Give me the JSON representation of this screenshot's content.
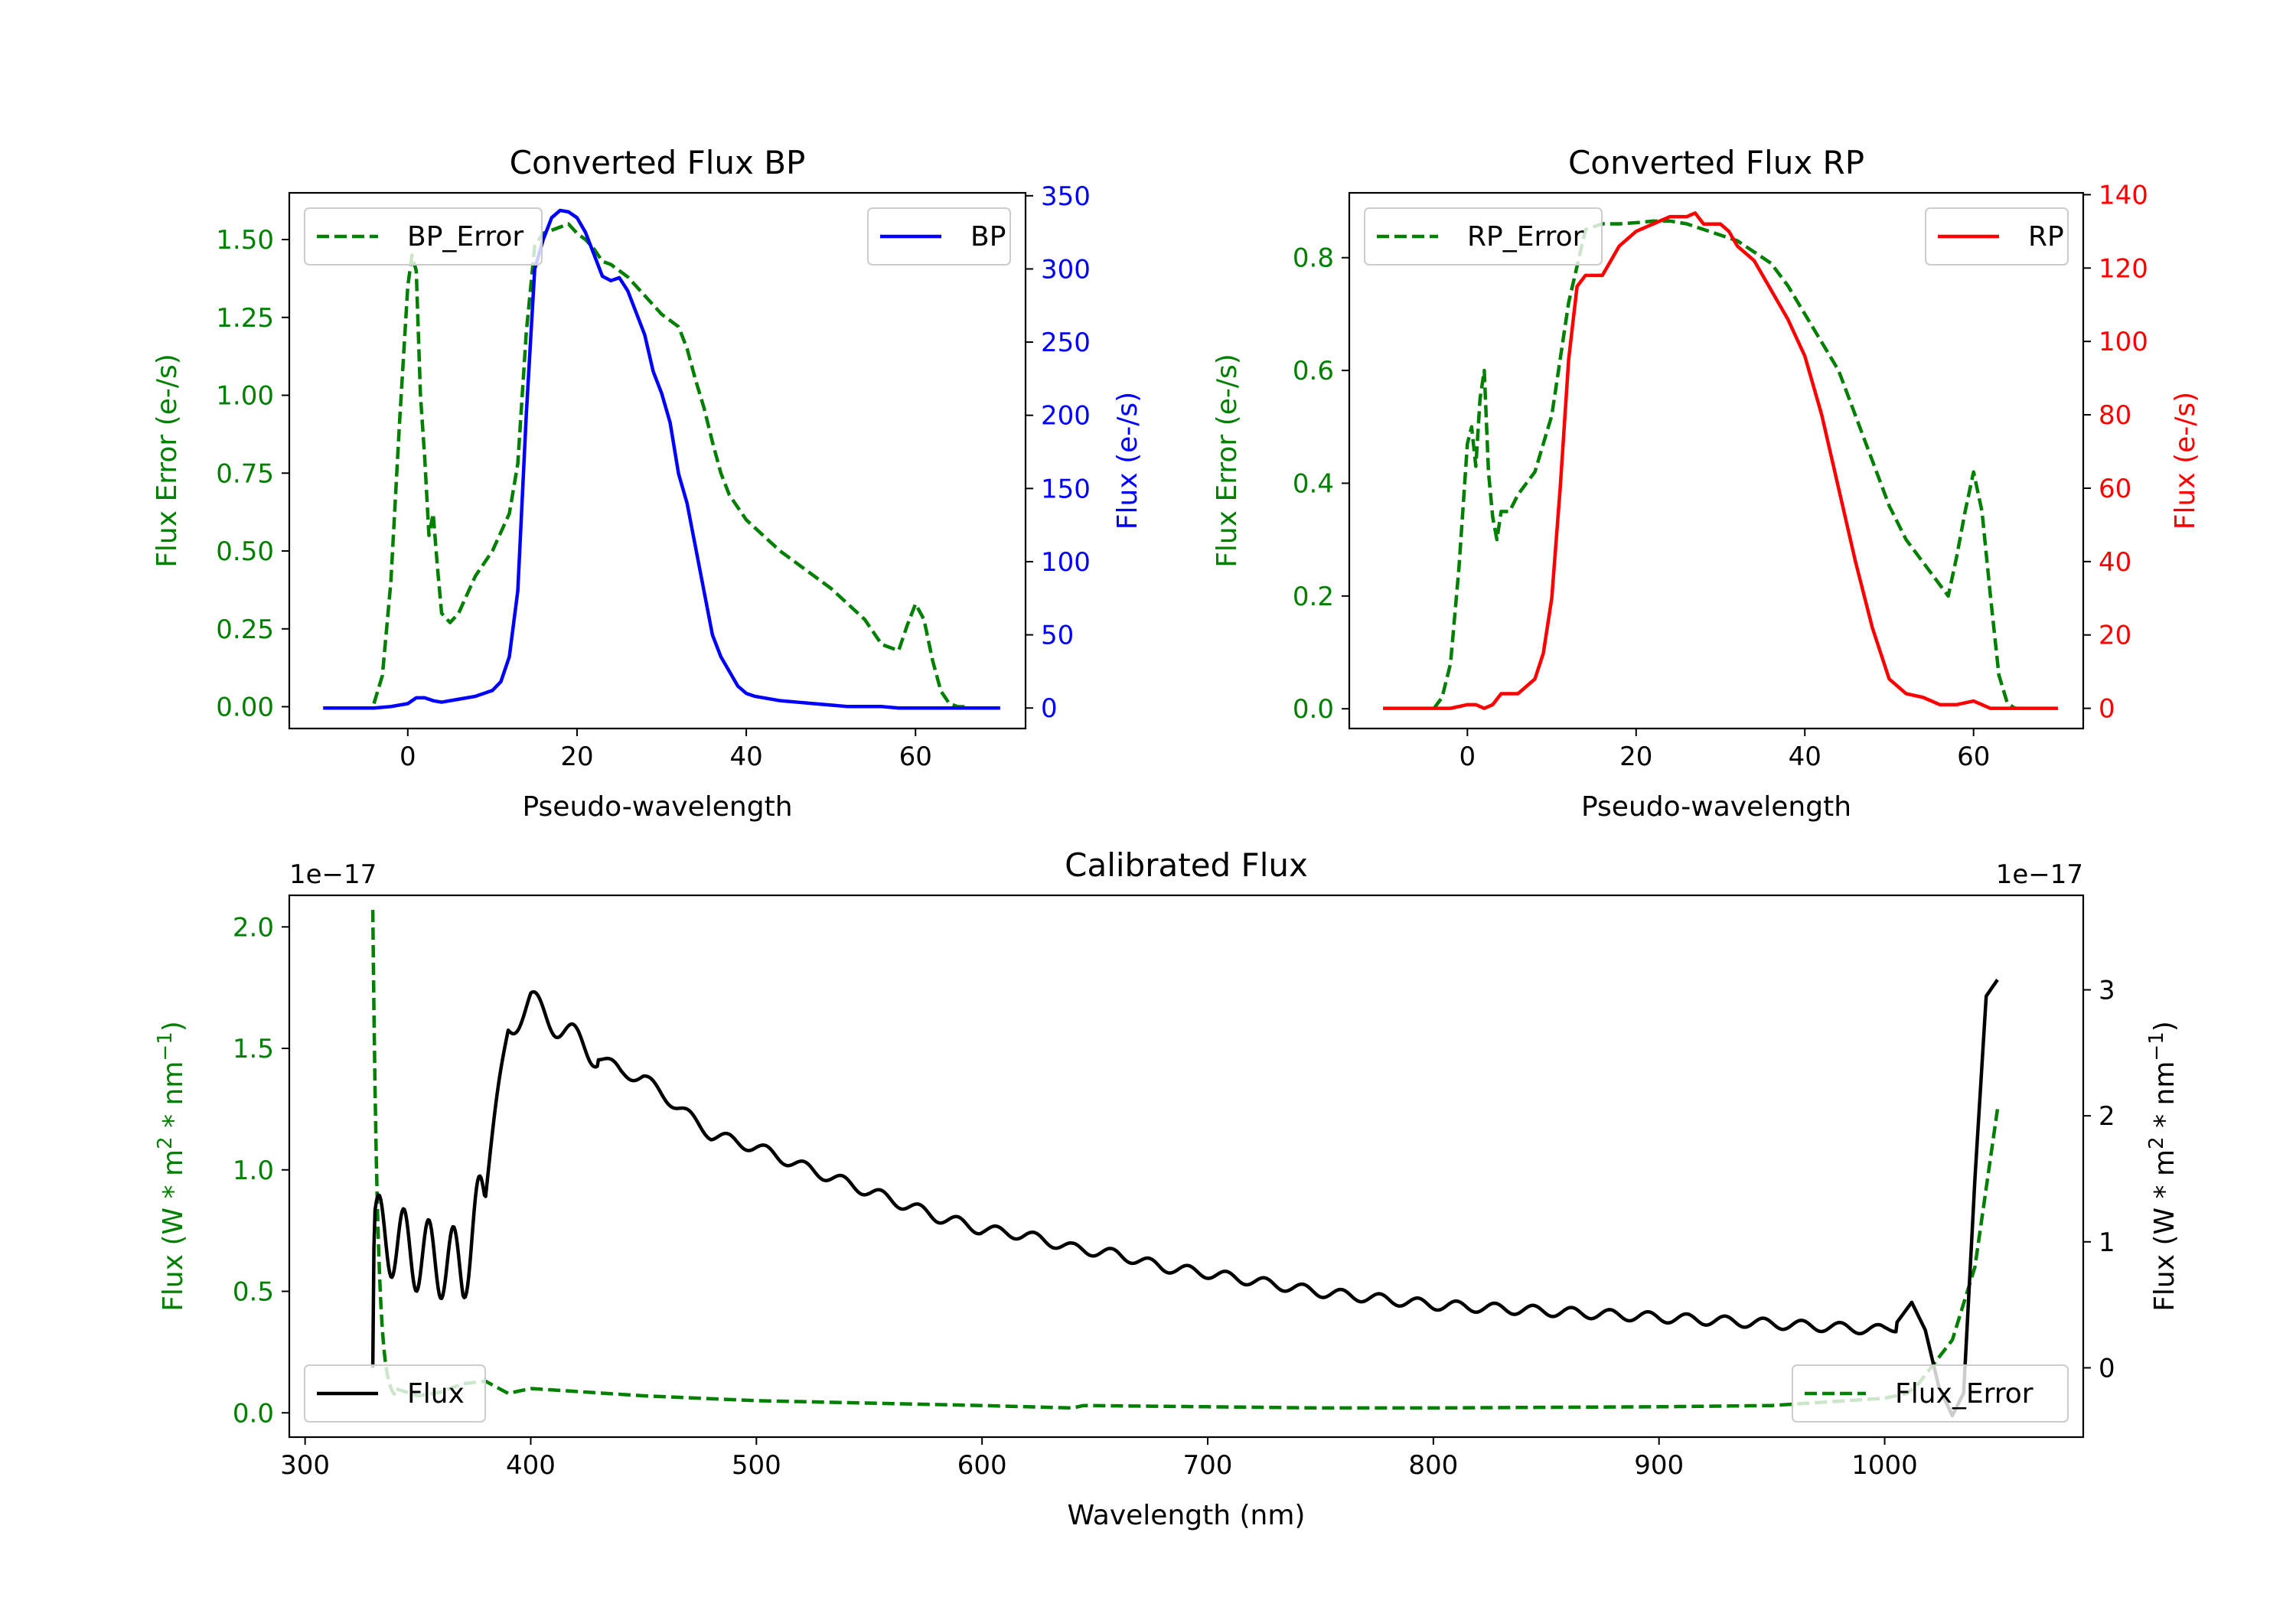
{
  "chart_data": [
    {
      "id": "bp",
      "type": "line",
      "title": "Converted Flux BP",
      "xlabel": "Pseudo-wavelength",
      "ylabel_left": "Flux Error (e-/s)",
      "ylabel_right": "Flux (e-/s)",
      "xlim": [
        -14,
        73
      ],
      "ylim_left": [
        -0.07,
        1.65
      ],
      "ylim_right": [
        -14,
        352
      ],
      "xticks": [
        0,
        20,
        40,
        60
      ],
      "yticks_left": [
        0.0,
        0.25,
        0.5,
        0.75,
        1.0,
        1.25,
        1.5
      ],
      "yticks_left_labels": [
        "0.00",
        "0.25",
        "0.50",
        "0.75",
        "1.00",
        "1.25",
        "1.50"
      ],
      "yticks_right": [
        0,
        50,
        100,
        150,
        200,
        250,
        300,
        350
      ],
      "legend_left": "BP_Error",
      "legend_right": "BP",
      "series_error": {
        "name": "BP_Error",
        "axis": "left",
        "color": "#008000",
        "dash": true,
        "x": [
          -4,
          -3,
          -2,
          -1,
          0,
          0.5,
          1,
          1.5,
          2,
          2.5,
          3,
          3.5,
          4,
          5,
          6,
          7,
          8,
          10,
          12,
          13,
          14,
          15,
          16,
          17,
          18,
          19,
          20,
          21,
          22,
          23,
          24,
          25,
          26,
          27,
          28,
          29,
          30,
          31,
          32,
          33,
          34,
          35,
          36,
          37,
          38,
          40,
          42,
          44,
          46,
          48,
          50,
          52,
          54,
          56,
          58,
          59,
          60,
          61,
          62,
          63,
          64,
          65,
          66
        ],
        "values": [
          0.01,
          0.1,
          0.4,
          0.9,
          1.35,
          1.45,
          1.4,
          1.0,
          0.8,
          0.55,
          0.62,
          0.45,
          0.3,
          0.27,
          0.3,
          0.36,
          0.42,
          0.5,
          0.62,
          0.78,
          1.2,
          1.48,
          1.52,
          1.53,
          1.54,
          1.55,
          1.52,
          1.5,
          1.47,
          1.43,
          1.42,
          1.4,
          1.38,
          1.35,
          1.32,
          1.29,
          1.26,
          1.24,
          1.22,
          1.15,
          1.05,
          0.96,
          0.85,
          0.75,
          0.68,
          0.6,
          0.55,
          0.5,
          0.46,
          0.42,
          0.38,
          0.33,
          0.28,
          0.2,
          0.18,
          0.26,
          0.33,
          0.28,
          0.15,
          0.05,
          0.01,
          0.0,
          0.0
        ]
      },
      "series_flux": {
        "name": "BP",
        "axis": "right",
        "color": "#0000ff",
        "dash": false,
        "x": [
          -10,
          -6,
          -4,
          -2,
          0,
          1,
          2,
          3,
          4,
          6,
          8,
          10,
          11,
          12,
          13,
          14,
          15,
          16,
          17,
          18,
          19,
          20,
          21,
          22,
          23,
          24,
          25,
          26,
          27,
          28,
          29,
          30,
          31,
          32,
          33,
          34,
          35,
          36,
          37,
          38,
          39,
          40,
          41,
          42,
          44,
          46,
          48,
          50,
          52,
          54,
          56,
          58,
          60,
          62,
          65,
          70
        ],
        "values": [
          0,
          0,
          0,
          1,
          3,
          7,
          7,
          5,
          4,
          6,
          8,
          12,
          18,
          35,
          80,
          200,
          300,
          320,
          335,
          340,
          339,
          335,
          325,
          310,
          295,
          292,
          294,
          285,
          270,
          255,
          230,
          215,
          195,
          160,
          140,
          110,
          80,
          50,
          35,
          25,
          15,
          10,
          8,
          7,
          5,
          4,
          3,
          2,
          1,
          1,
          1,
          0,
          0,
          0,
          0,
          0
        ]
      }
    },
    {
      "id": "rp",
      "type": "line",
      "title": "Converted Flux RP",
      "xlabel": "Pseudo-wavelength",
      "ylabel_left": "Flux Error (e-/s)",
      "ylabel_right": "Flux (e-/s)",
      "xlim": [
        -14,
        73
      ],
      "ylim_left": [
        -0.035,
        0.915
      ],
      "ylim_right": [
        -5.5,
        140.5
      ],
      "xticks": [
        0,
        20,
        40,
        60
      ],
      "yticks_left": [
        0.0,
        0.2,
        0.4,
        0.6,
        0.8
      ],
      "yticks_left_labels": [
        "0.0",
        "0.2",
        "0.4",
        "0.6",
        "0.8"
      ],
      "yticks_right": [
        0,
        20,
        40,
        60,
        80,
        100,
        120,
        140
      ],
      "legend_left": "RP_Error",
      "legend_right": "RP",
      "series_error": {
        "name": "RP_Error",
        "axis": "left",
        "color": "#008000",
        "dash": true,
        "x": [
          -4,
          -3,
          -2,
          -1,
          0,
          0.5,
          1,
          1.5,
          2,
          2.5,
          3,
          3.5,
          4,
          5,
          6,
          8,
          10,
          12,
          14,
          16,
          18,
          20,
          22,
          24,
          26,
          28,
          30,
          32,
          34,
          36,
          38,
          40,
          42,
          44,
          46,
          48,
          50,
          52,
          54,
          56,
          57,
          58,
          59,
          60,
          61,
          62,
          63,
          64,
          65
        ],
        "values": [
          0.0,
          0.02,
          0.08,
          0.25,
          0.47,
          0.5,
          0.43,
          0.55,
          0.6,
          0.42,
          0.34,
          0.3,
          0.35,
          0.35,
          0.38,
          0.42,
          0.52,
          0.72,
          0.85,
          0.86,
          0.86,
          0.862,
          0.865,
          0.865,
          0.86,
          0.85,
          0.84,
          0.83,
          0.81,
          0.79,
          0.75,
          0.7,
          0.65,
          0.6,
          0.52,
          0.44,
          0.36,
          0.3,
          0.26,
          0.22,
          0.2,
          0.27,
          0.35,
          0.42,
          0.35,
          0.2,
          0.06,
          0.01,
          0.0
        ]
      },
      "series_flux": {
        "name": "RP",
        "axis": "right",
        "color": "#ff0000",
        "dash": false,
        "x": [
          -10,
          -4,
          -2,
          0,
          1,
          2,
          3,
          4,
          5,
          6,
          8,
          9,
          10,
          11,
          12,
          13,
          14,
          15,
          16,
          17,
          18,
          20,
          22,
          24,
          26,
          27,
          28,
          30,
          31,
          32,
          34,
          36,
          38,
          40,
          42,
          44,
          46,
          48,
          50,
          52,
          54,
          56,
          58,
          60,
          62,
          65,
          70
        ],
        "values": [
          0,
          0,
          0,
          1,
          1,
          0,
          1,
          4,
          4,
          4,
          8,
          15,
          30,
          60,
          95,
          115,
          118,
          118,
          118,
          122,
          126,
          130,
          132,
          134,
          134,
          135,
          132,
          132,
          130,
          126,
          122,
          114,
          106,
          96,
          80,
          60,
          40,
          22,
          8,
          4,
          3,
          1,
          1,
          2,
          0,
          0,
          0
        ]
      }
    },
    {
      "id": "calibrated",
      "type": "line",
      "title": "Calibrated Flux",
      "xlabel": "Wavelength (nm)",
      "ylabel_left": "Flux (W * m$^2$ * nm$^{-1}$)",
      "ylabel_right": "Flux (W * m$^2$ * nm$^{-1}$)",
      "ylabel_main": "Flux (W * m",
      "ylabel_mid": " * nm",
      "sup_two": "2",
      "sup_minus_one": "−1",
      "ylabel_close": ")",
      "offset_text_left": "1e−17",
      "offset_text_right": "1e−17",
      "xlim": [
        293,
        1088
      ],
      "ylim_left": [
        -0.1,
        2.13
      ],
      "ylim_right": [
        -0.55,
        3.75
      ],
      "xticks": [
        300,
        400,
        500,
        600,
        700,
        800,
        900,
        1000
      ],
      "yticks_left": [
        0.0,
        0.5,
        1.0,
        1.5,
        2.0
      ],
      "yticks_left_labels": [
        "0.0",
        "0.5",
        "1.0",
        "1.5",
        "2.0"
      ],
      "yticks_right": [
        0,
        1,
        2,
        3
      ],
      "legend_left": "Flux",
      "legend_right": "Flux_Error",
      "flux_knots": {
        "x": [
          330,
          340,
          350,
          360,
          370,
          380,
          390,
          400,
          420,
          440,
          450,
          460,
          480,
          500,
          520,
          550,
          580,
          600,
          620,
          640,
          660,
          680,
          700,
          750,
          800,
          850,
          900,
          950,
          1000,
          1010
        ],
        "values": [
          1.1,
          1.0,
          0.9,
          0.85,
          0.8,
          1.4,
          2.7,
          2.9,
          2.6,
          2.35,
          2.3,
          2.15,
          1.85,
          1.75,
          1.6,
          1.4,
          1.2,
          1.1,
          1.05,
          0.95,
          0.9,
          0.8,
          0.75,
          0.6,
          0.5,
          0.45,
          0.4,
          0.35,
          0.3,
          0.35
        ]
      },
      "flux_error_knots": {
        "x": [
          340,
          350,
          360,
          370,
          380,
          390,
          400,
          450,
          500,
          550,
          600,
          640,
          645,
          700,
          750,
          800,
          900,
          950,
          1000,
          1010,
          1015,
          1020,
          1030,
          1040,
          1050
        ],
        "values": [
          0.1,
          0.07,
          0.085,
          0.12,
          0.13,
          0.08,
          0.1,
          0.07,
          0.05,
          0.04,
          0.03,
          0.02,
          0.03,
          0.025,
          0.02,
          0.02,
          0.025,
          0.03,
          0.06,
          0.08,
          0.12,
          0.18,
          0.3,
          0.6,
          1.25
        ]
      },
      "series": [
        {
          "name": "Flux",
          "axis": "right",
          "color": "#000000",
          "dash": false
        },
        {
          "name": "Flux_Error",
          "axis": "left",
          "color": "#008000",
          "dash": true
        }
      ]
    }
  ]
}
